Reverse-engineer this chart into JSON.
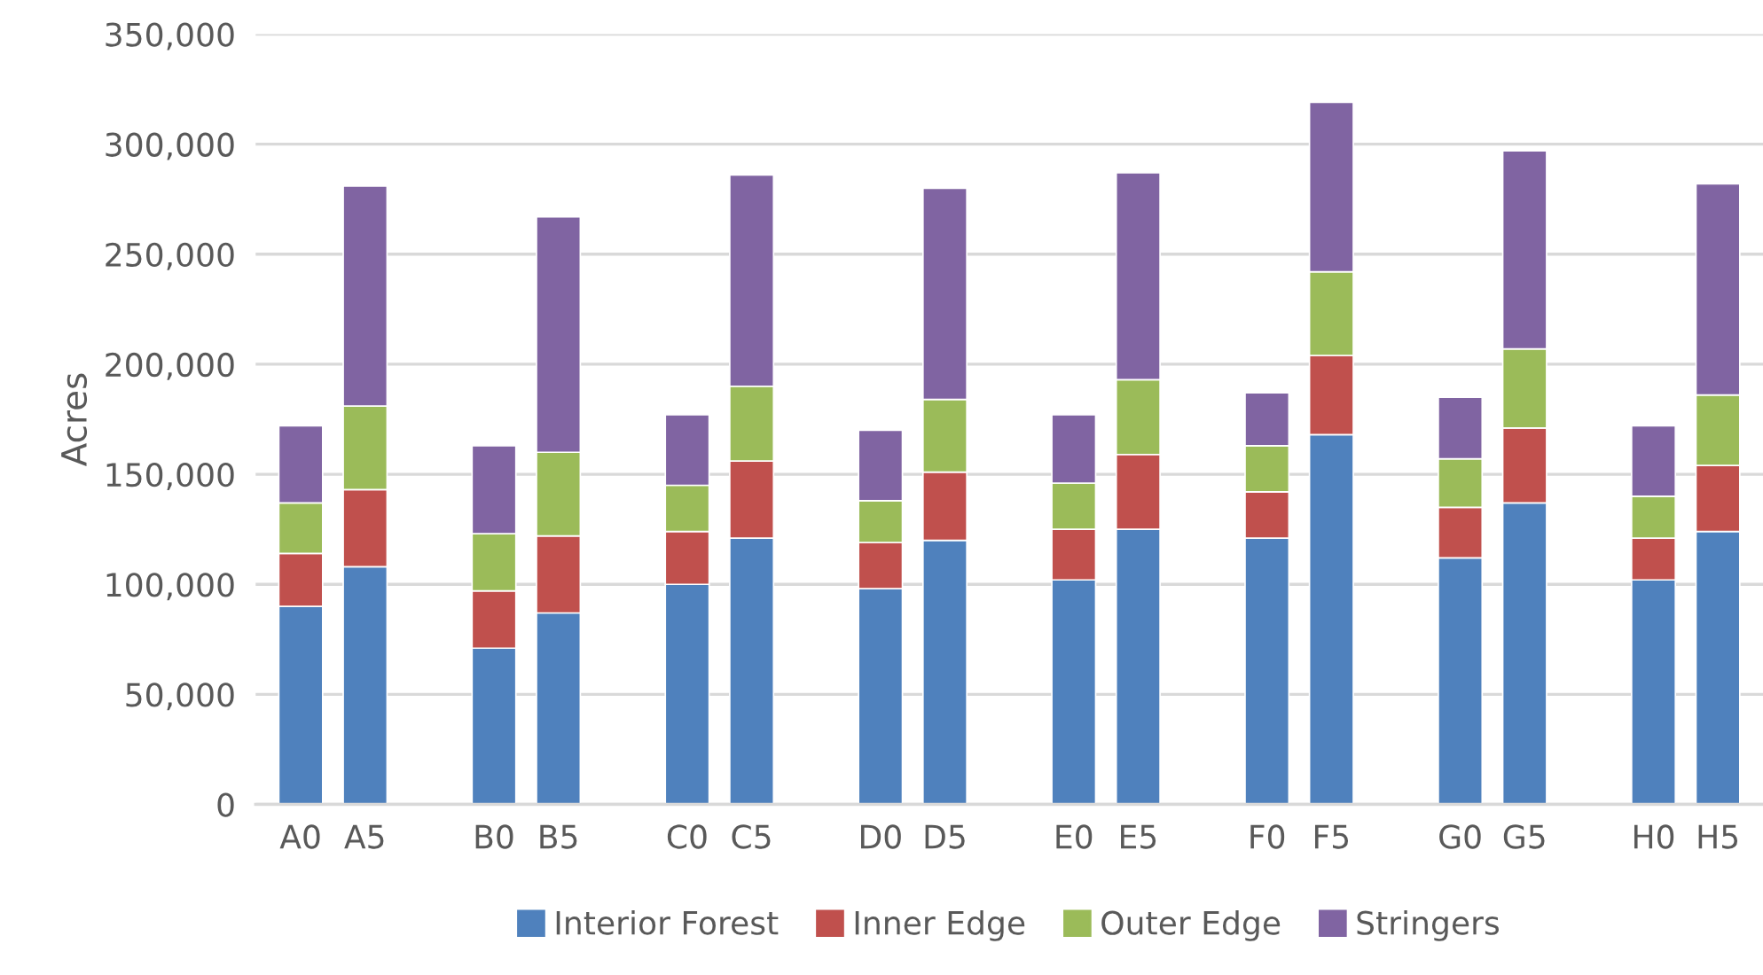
{
  "chart_data": {
    "type": "bar",
    "stacked": true,
    "ylabel": "Acres",
    "categories": [
      "A0",
      "A5",
      null,
      "B0",
      "B5",
      null,
      "C0",
      "C5",
      null,
      "D0",
      "D5",
      null,
      "E0",
      "E5",
      null,
      "F0",
      "F5",
      null,
      "G0",
      "G5",
      null,
      "H0",
      "H5"
    ],
    "series": [
      {
        "name": "Interior Forest",
        "color": "#4f81bd",
        "values": [
          90000,
          108000,
          null,
          71000,
          87000,
          null,
          100000,
          121000,
          null,
          98000,
          120000,
          null,
          102000,
          125000,
          null,
          121000,
          168000,
          null,
          112000,
          137000,
          null,
          102000,
          124000
        ]
      },
      {
        "name": "Inner Edge",
        "color": "#c0504d",
        "values": [
          24000,
          35000,
          null,
          26000,
          35000,
          null,
          24000,
          35000,
          null,
          21000,
          31000,
          null,
          23000,
          34000,
          null,
          21000,
          36000,
          null,
          23000,
          34000,
          null,
          19000,
          30000
        ]
      },
      {
        "name": "Outer Edge",
        "color": "#9bbb59",
        "values": [
          23000,
          38000,
          null,
          26000,
          38000,
          null,
          21000,
          34000,
          null,
          19000,
          33000,
          null,
          21000,
          34000,
          null,
          21000,
          38000,
          null,
          22000,
          36000,
          null,
          19000,
          32000
        ]
      },
      {
        "name": "Stringers",
        "color": "#8064a2",
        "values": [
          35000,
          100000,
          null,
          40000,
          107000,
          null,
          32000,
          96000,
          null,
          32000,
          96000,
          null,
          31000,
          94000,
          null,
          24000,
          77000,
          null,
          28000,
          90000,
          null,
          32000,
          96000
        ]
      }
    ],
    "ylim": [
      0,
      350000
    ],
    "yticks": [
      {
        "value": 0,
        "label": "0"
      },
      {
        "value": 50000,
        "label": "50,000"
      },
      {
        "value": 100000,
        "label": "100,000"
      },
      {
        "value": 150000,
        "label": "150,000"
      },
      {
        "value": 200000,
        "label": "200,000"
      },
      {
        "value": 250000,
        "label": "250,000"
      },
      {
        "value": 300000,
        "label": "300,000"
      },
      {
        "value": 350000,
        "label": "350,000"
      }
    ],
    "grid": "y",
    "legend": "bottom"
  }
}
